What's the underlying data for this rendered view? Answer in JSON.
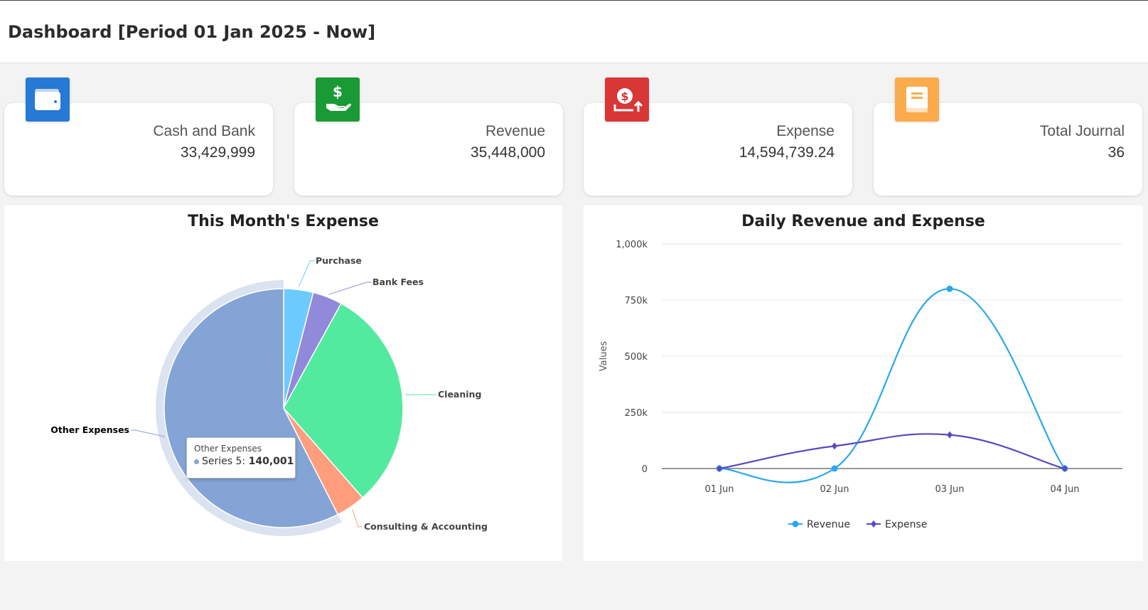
{
  "header": {
    "title": "Dashboard [Period 01 Jan 2025 - Now]"
  },
  "cards": [
    {
      "label": "Cash and Bank",
      "value": "33,429,999",
      "icon": "wallet-icon",
      "color": "#2679d4"
    },
    {
      "label": "Revenue",
      "value": "35,448,000",
      "icon": "hand-money-icon",
      "color": "#1a9a35"
    },
    {
      "label": "Expense",
      "value": "14,594,739.24",
      "icon": "money-out-icon",
      "color": "#d93636"
    },
    {
      "label": "Total Journal",
      "value": "36",
      "icon": "book-icon",
      "color": "#fbab4c"
    }
  ],
  "expense_panel": {
    "title": "This Month's Expense",
    "tooltip": {
      "title": "Other Expenses",
      "series": "Series 5:",
      "value": "140,001"
    }
  },
  "revenue_panel": {
    "title": "Daily Revenue and Expense"
  },
  "chart_data": [
    {
      "type": "pie",
      "title": "This Month's Expense",
      "slices": [
        {
          "label": "Purchase",
          "value": 4.0,
          "color": "#6dcaff"
        },
        {
          "label": "Bank Fees",
          "value": 4.0,
          "color": "#9189da"
        },
        {
          "label": "Cleaning",
          "value": 30.5,
          "color": "#52ea9e"
        },
        {
          "label": "Consulting & Accounting",
          "value": 4.0,
          "color": "#ff9d7d"
        },
        {
          "label": "Other Expenses",
          "value": 57.5,
          "color": "#84a4d5"
        }
      ],
      "highlighted": "Other Expenses"
    },
    {
      "type": "line",
      "title": "Daily Revenue and Expense",
      "categories": [
        "01 Jun",
        "02 Jun",
        "03 Jun",
        "04 Jun"
      ],
      "ylabel": "Values",
      "ylim": [
        0,
        1000000
      ],
      "yticks": [
        "0",
        "250k",
        "500k",
        "750k",
        "1,000k"
      ],
      "series": [
        {
          "name": "Revenue",
          "values": [
            0,
            0,
            800000,
            0
          ],
          "color": "#29a7ed"
        },
        {
          "name": "Expense",
          "values": [
            0,
            100000,
            150000,
            0
          ],
          "color": "#5848c2"
        }
      ],
      "legend": "bottom",
      "grid": true
    }
  ]
}
